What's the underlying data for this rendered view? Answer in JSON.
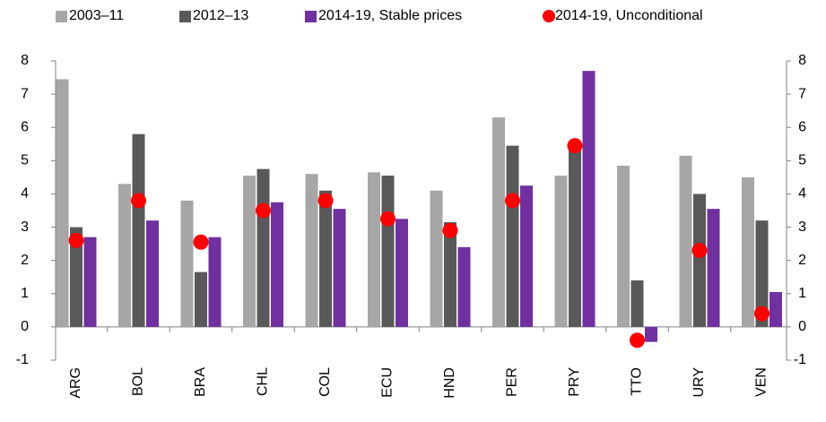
{
  "chart_data": {
    "type": "bar",
    "categories": [
      "ARG",
      "BOL",
      "BRA",
      "CHL",
      "COL",
      "ECU",
      "HND",
      "PER",
      "PRY",
      "TTO",
      "URY",
      "VEN"
    ],
    "series": [
      {
        "name": "2003–11",
        "color": "#a6a6a6",
        "values": [
          7.45,
          4.3,
          3.8,
          4.55,
          4.6,
          4.65,
          4.1,
          6.3,
          4.55,
          4.85,
          5.15,
          4.5
        ]
      },
      {
        "name": "2012–13",
        "color": "#595959",
        "values": [
          3.0,
          5.8,
          1.65,
          4.75,
          4.1,
          4.55,
          3.15,
          5.45,
          5.5,
          1.4,
          4.0,
          3.2
        ]
      },
      {
        "name": "2014-19, Stable prices",
        "color": "#7030a0",
        "values": [
          2.7,
          3.2,
          2.7,
          3.75,
          3.55,
          3.25,
          2.4,
          4.25,
          7.7,
          -0.45,
          3.55,
          1.05
        ]
      },
      {
        "name": "2014-19, Unconditional",
        "color": "#ff0000",
        "type": "scatter",
        "values": [
          2.6,
          3.8,
          2.55,
          3.5,
          3.8,
          3.25,
          2.9,
          3.8,
          5.45,
          -0.4,
          2.3,
          0.4
        ]
      }
    ],
    "ylim": [
      -1,
      8
    ],
    "yticks": [
      -1,
      0,
      1,
      2,
      3,
      4,
      5,
      6,
      7,
      8
    ],
    "y2lim": [
      -1,
      8
    ],
    "y2ticks": [
      -1,
      0,
      1,
      2,
      3,
      4,
      5,
      6,
      7,
      8
    ]
  }
}
